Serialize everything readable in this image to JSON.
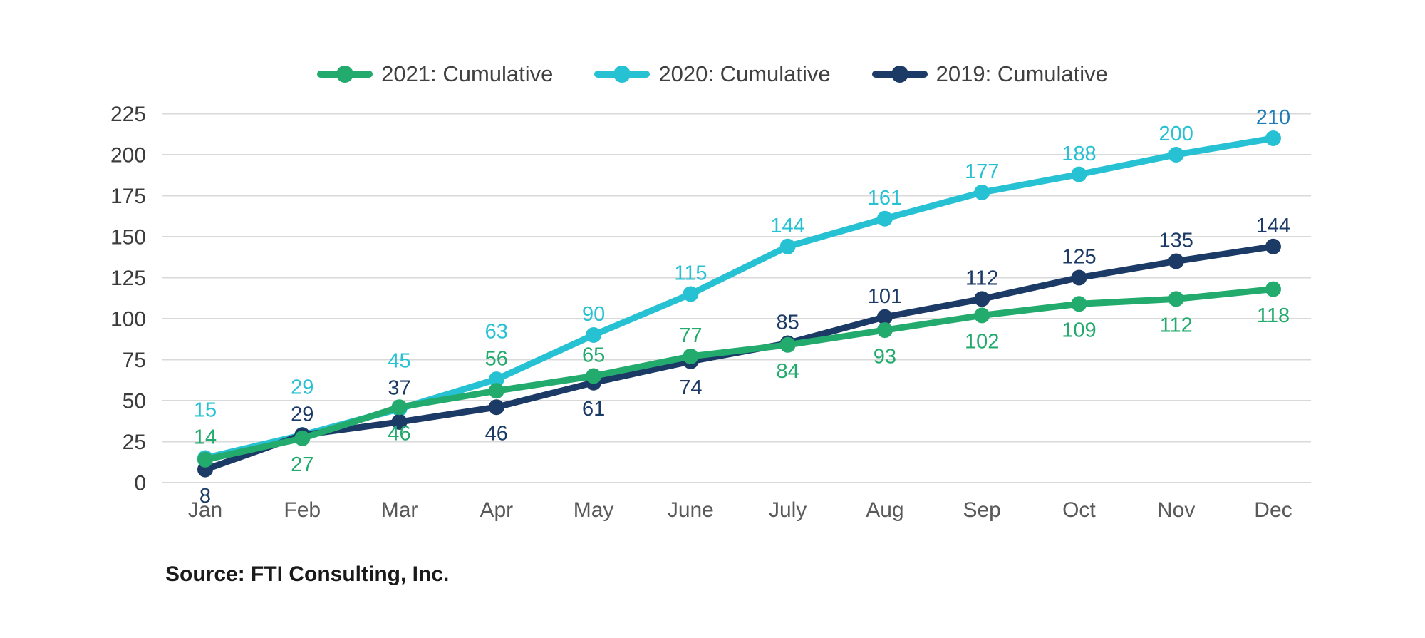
{
  "chart_data": {
    "type": "line",
    "title": "",
    "xlabel": "",
    "ylabel": "",
    "categories": [
      "Jan",
      "Feb",
      "Mar",
      "Apr",
      "May",
      "June",
      "July",
      "Aug",
      "Sep",
      "Oct",
      "Nov",
      "Dec"
    ],
    "series": [
      {
        "name": "2021: Cumulative",
        "color": "#23AA6D",
        "values": [
          14,
          27,
          46,
          56,
          65,
          77,
          84,
          93,
          102,
          109,
          112,
          118
        ],
        "label_side": [
          "above",
          "below",
          "below",
          "above",
          "above",
          "above",
          "below",
          "below",
          "below",
          "below",
          "below",
          "below"
        ]
      },
      {
        "name": "2020: Cumulative",
        "color": "#26C1D3",
        "values": [
          15,
          29,
          45,
          63,
          90,
          115,
          144,
          161,
          177,
          188,
          200,
          210
        ],
        "label_side": [
          "above",
          "above",
          "above",
          "above",
          "above",
          "above",
          "above",
          "above",
          "above",
          "above",
          "above",
          "above"
        ],
        "label_color_overrides": {
          "11": "#1F7CB5"
        }
      },
      {
        "name": "2019: Cumulative",
        "color": "#1B3A66",
        "values": [
          8,
          29,
          37,
          46,
          61,
          74,
          85,
          101,
          112,
          125,
          135,
          144
        ],
        "label_side": [
          "below",
          "above",
          "above",
          "below",
          "below",
          "below",
          "above",
          "above",
          "above",
          "above",
          "above",
          "above"
        ]
      }
    ],
    "ylim": [
      0,
      225
    ],
    "yticks": [
      0,
      25,
      50,
      75,
      100,
      125,
      150,
      175,
      200,
      225
    ],
    "grid": true,
    "legend_position": "top"
  },
  "source_note": "Source: FTI Consulting, Inc.",
  "colors": {
    "background": "#FFFFFF",
    "grid": "#D9D9D9",
    "y_tick_text": "#3C3C3C",
    "month_text": "#595959",
    "legend_text": "#404041",
    "source_text": "#1A1A1A",
    "dec_2020_label": "#1F7CB5"
  }
}
